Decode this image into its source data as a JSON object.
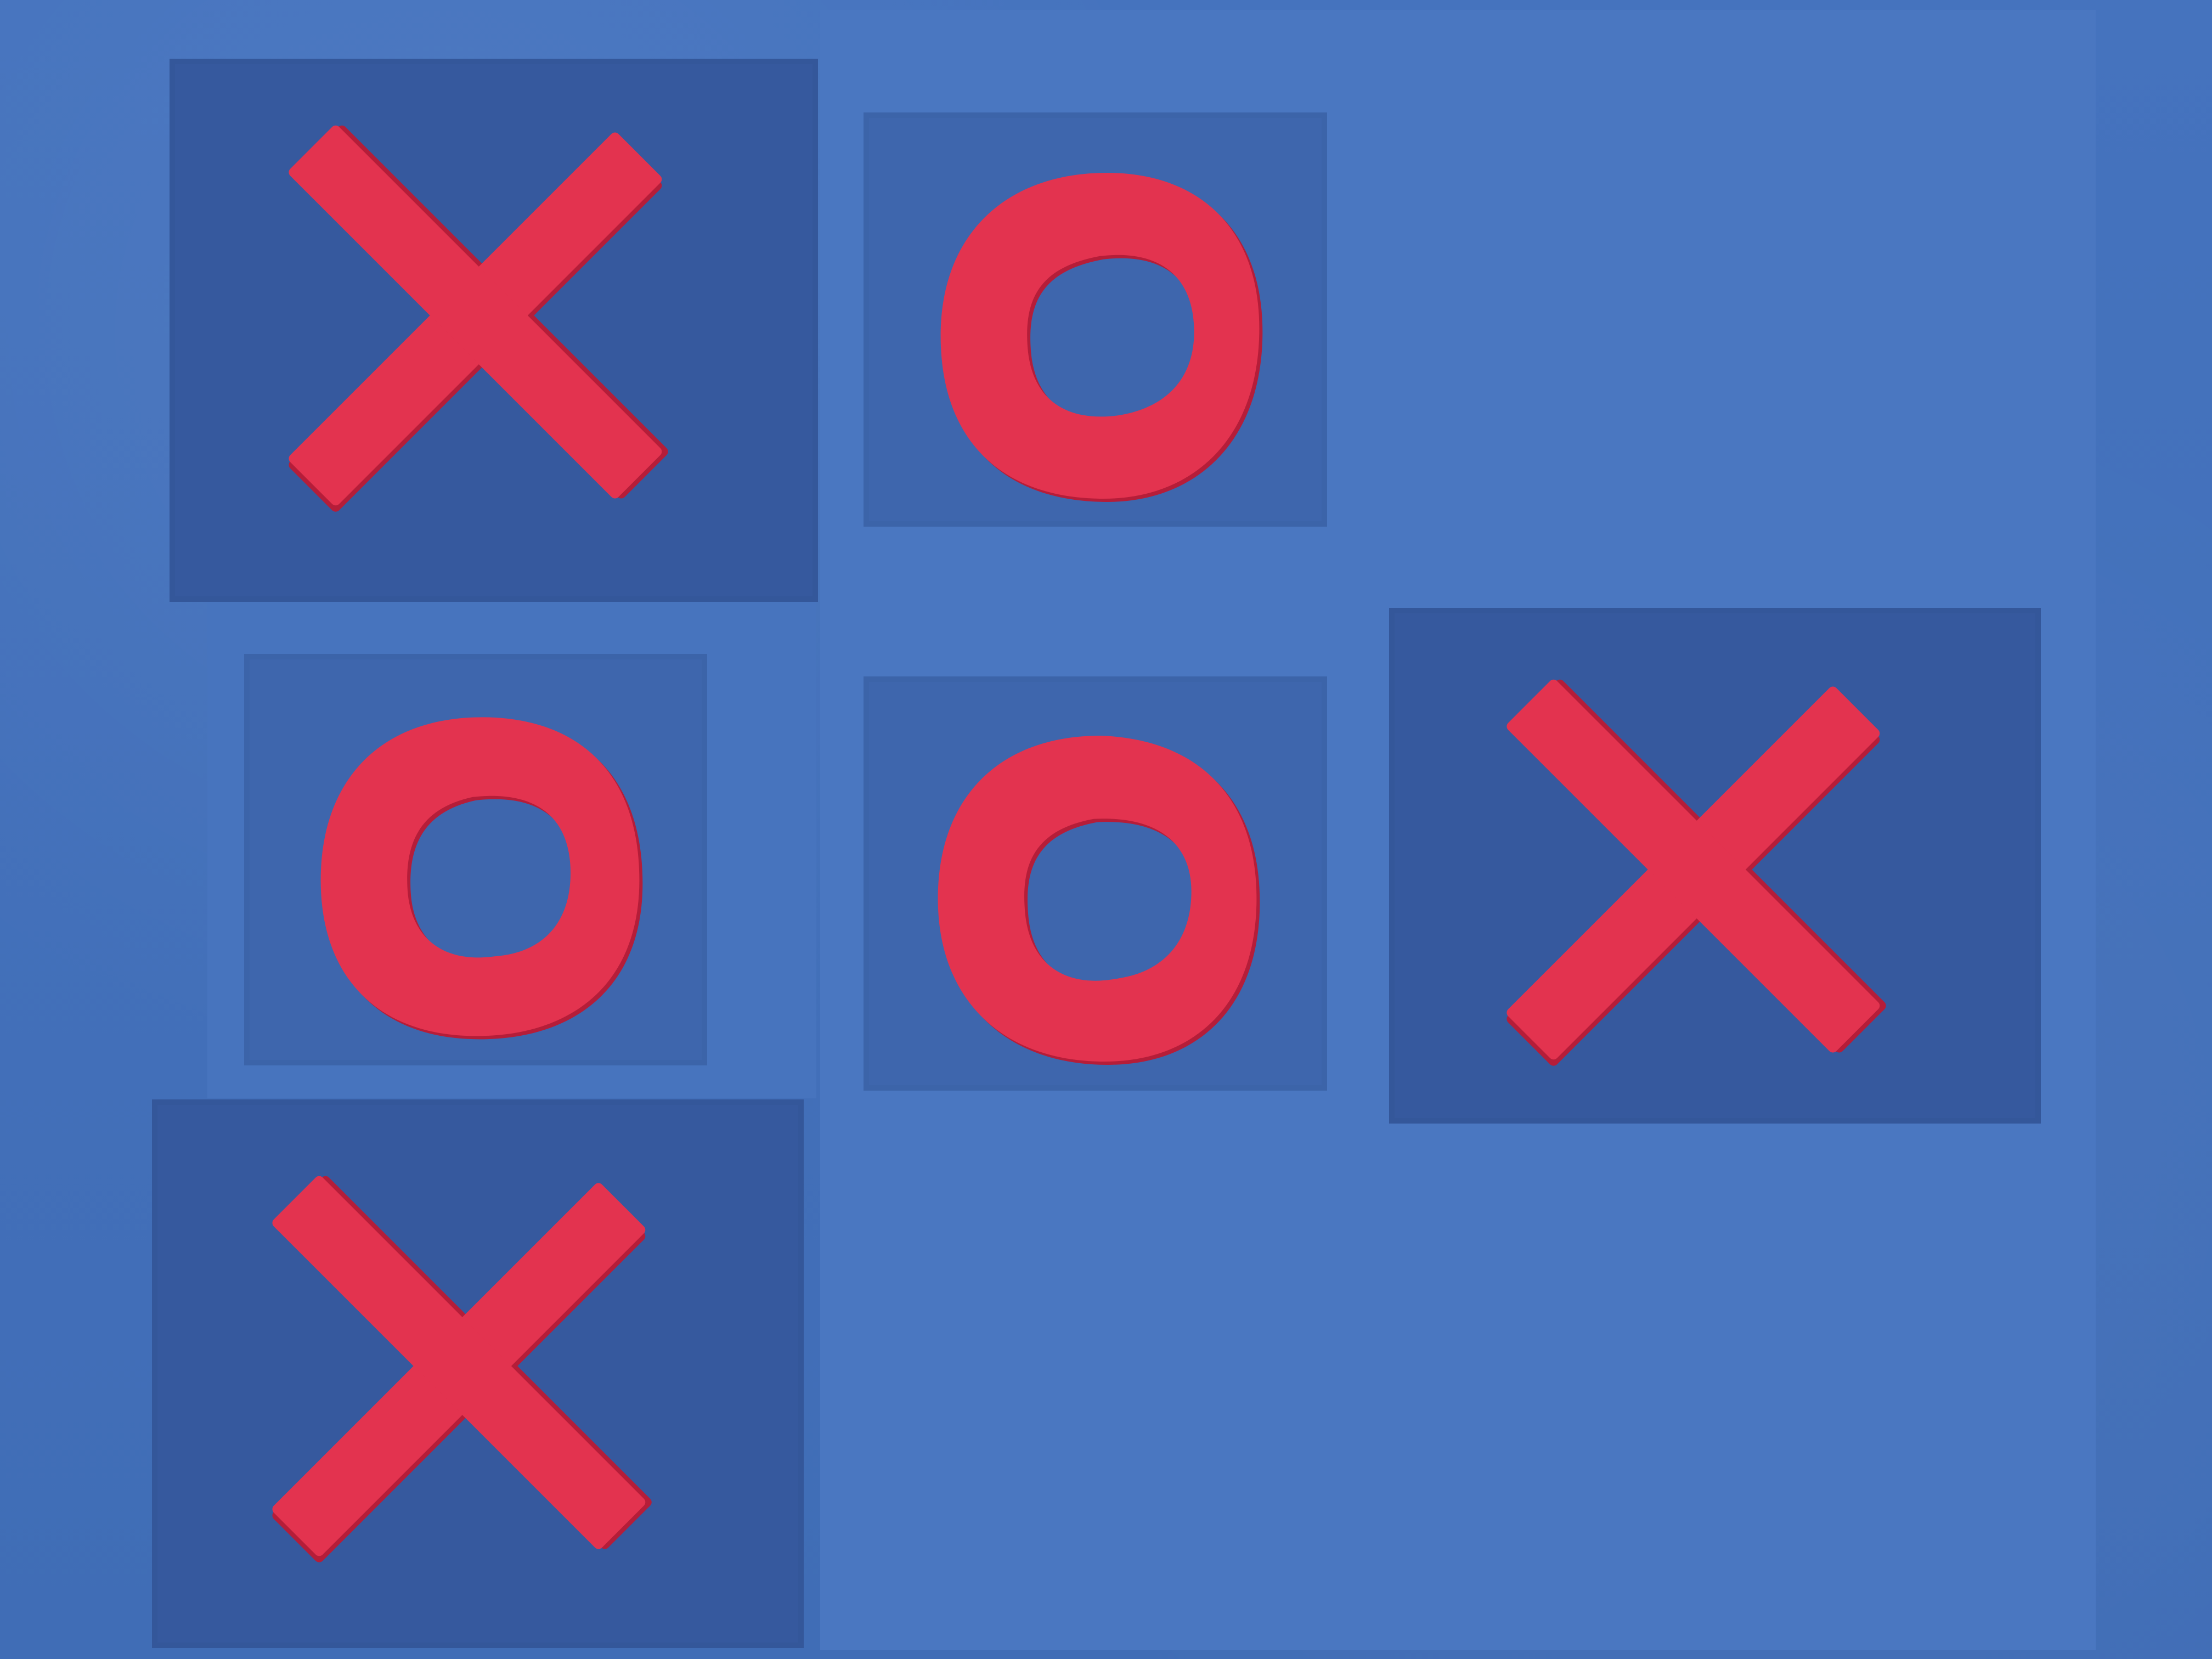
{
  "game": {
    "type": "tic-tac-toe",
    "board": [
      [
        "X",
        "O",
        ""
      ],
      [
        "O",
        "O",
        "X"
      ],
      [
        "X",
        "",
        ""
      ]
    ]
  },
  "colors": {
    "background": "#406db6",
    "board": "#4a77c1",
    "patch_dark": "#36599e",
    "patch_light": "#3e66ad",
    "piece": "#e3334f",
    "piece_shadow": "#b51d39"
  },
  "icons": {
    "x_piece": "cross-shape",
    "o_piece": "ring-shape"
  }
}
